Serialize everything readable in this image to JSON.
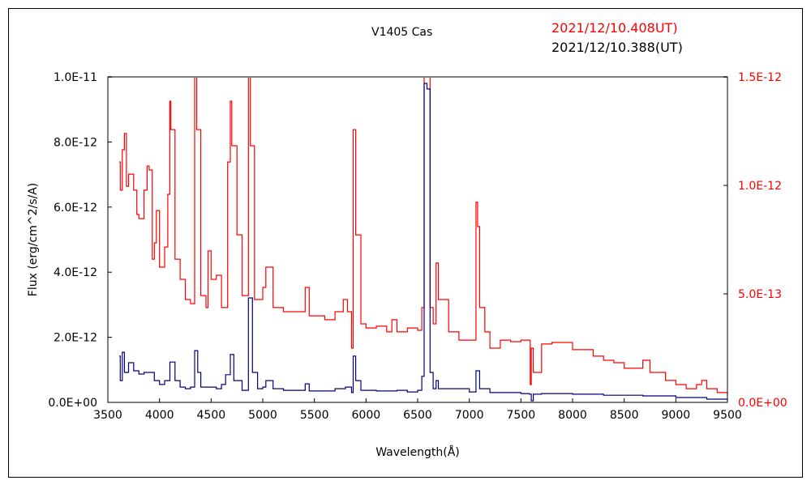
{
  "chart_data": {
    "type": "line",
    "title": "V1405 Cas",
    "xlabel": "Wavelength(Å)",
    "ylabel": "Flux (erg/cm^2/s/A)",
    "xlim": [
      3500,
      9500
    ],
    "ylim_left": [
      0,
      1e-11
    ],
    "ylim_right": [
      0,
      1.5e-12
    ],
    "x_ticks": [
      "3500",
      "4000",
      "4500",
      "5000",
      "5500",
      "6000",
      "6500",
      "7000",
      "7500",
      "8000",
      "8500",
      "9000",
      "9500"
    ],
    "x_tick_values": [
      3500,
      4000,
      4500,
      5000,
      5500,
      6000,
      6500,
      7000,
      7500,
      8000,
      8500,
      9000,
      9500
    ],
    "y_left_ticks": [
      "0.0E+00",
      "2.0E-12",
      "4.0E-12",
      "6.0E-12",
      "8.0E-12",
      "1.0E-11"
    ],
    "y_left_tick_values": [
      0,
      2e-12,
      4e-12,
      6e-12,
      8e-12,
      1e-11
    ],
    "y_right_ticks": [
      "0.0E+00",
      "5.0E-13",
      "1.0E-12",
      "1.5E-12"
    ],
    "y_right_tick_values": [
      0,
      5e-13,
      1e-12,
      1.5e-12
    ],
    "grid": false,
    "legend_placement": "top-right",
    "series": [
      {
        "name": "2021/12/10.408UT)",
        "axis": "right",
        "color": "#ff0000",
        "points": [
          [
            3610,
            1.108e-12
          ],
          [
            3620,
            9.78e-13
          ],
          [
            3640,
            1.164e-12
          ],
          [
            3660,
            1.239e-12
          ],
          [
            3680,
            9.96e-13
          ],
          [
            3700,
            1.052e-12
          ],
          [
            3750,
            9.78e-13
          ],
          [
            3780,
            8.66e-13
          ],
          [
            3800,
            8.47e-13
          ],
          [
            3850,
            9.78e-13
          ],
          [
            3880,
            1.089e-12
          ],
          [
            3900,
            1.071e-12
          ],
          [
            3930,
            6.6e-13
          ],
          [
            3950,
            7.35e-13
          ],
          [
            3970,
            8.84e-13
          ],
          [
            4000,
            6.23e-13
          ],
          [
            4050,
            7.16e-13
          ],
          [
            4080,
            9.59e-13
          ],
          [
            4100,
            1.388e-12
          ],
          [
            4110,
            1.257e-12
          ],
          [
            4150,
            6.6e-13
          ],
          [
            4200,
            5.67e-13
          ],
          [
            4250,
            4.74e-13
          ],
          [
            4300,
            4.55e-13
          ],
          [
            4340,
            1.6e-12
          ],
          [
            4360,
            1.257e-12
          ],
          [
            4400,
            4.92e-13
          ],
          [
            4450,
            4.37e-13
          ],
          [
            4470,
            6.98e-13
          ],
          [
            4500,
            5.67e-13
          ],
          [
            4550,
            5.86e-13
          ],
          [
            4600,
            4.37e-13
          ],
          [
            4660,
            1.108e-12
          ],
          [
            4686,
            1.388e-12
          ],
          [
            4700,
            1.183e-12
          ],
          [
            4750,
            7.72e-13
          ],
          [
            4800,
            4.92e-13
          ],
          [
            4861,
            2e-12
          ],
          [
            4880,
            1.183e-12
          ],
          [
            4920,
            4.74e-13
          ],
          [
            5000,
            5.3e-13
          ],
          [
            5030,
            6.23e-13
          ],
          [
            5100,
            4.37e-13
          ],
          [
            5200,
            4.18e-13
          ],
          [
            5300,
            4.18e-13
          ],
          [
            5411,
            5.3e-13
          ],
          [
            5450,
            3.99e-13
          ],
          [
            5500,
            3.99e-13
          ],
          [
            5600,
            3.81e-13
          ],
          [
            5700,
            4.18e-13
          ],
          [
            5780,
            4.74e-13
          ],
          [
            5820,
            4.18e-13
          ],
          [
            5860,
            2.5e-13
          ],
          [
            5876,
            1.257e-12
          ],
          [
            5900,
            7.72e-13
          ],
          [
            5950,
            3.62e-13
          ],
          [
            6000,
            3.43e-13
          ],
          [
            6100,
            3.51e-13
          ],
          [
            6200,
            3.25e-13
          ],
          [
            6250,
            3.81e-13
          ],
          [
            6300,
            3.25e-13
          ],
          [
            6400,
            3.43e-13
          ],
          [
            6500,
            3.32e-13
          ],
          [
            6540,
            4.37e-13
          ],
          [
            6563,
            2.5e-12
          ],
          [
            6590,
            2e-12
          ],
          [
            6620,
            4.37e-13
          ],
          [
            6650,
            3.62e-13
          ],
          [
            6678,
            6.42e-13
          ],
          [
            6700,
            4.74e-13
          ],
          [
            6800,
            3.25e-13
          ],
          [
            6900,
            2.87e-13
          ],
          [
            7000,
            2.87e-13
          ],
          [
            7065,
            9.22e-13
          ],
          [
            7080,
            8.1e-13
          ],
          [
            7100,
            4.37e-13
          ],
          [
            7150,
            3.25e-13
          ],
          [
            7200,
            2.5e-13
          ],
          [
            7300,
            2.87e-13
          ],
          [
            7400,
            2.8e-13
          ],
          [
            7500,
            2.87e-13
          ],
          [
            7560,
            2.87e-13
          ],
          [
            7590,
            8.2e-14
          ],
          [
            7600,
            2.5e-13
          ],
          [
            7620,
            1.38e-13
          ],
          [
            7700,
            2.69e-13
          ],
          [
            7800,
            2.76e-13
          ],
          [
            8000,
            2.43e-13
          ],
          [
            8200,
            2.13e-13
          ],
          [
            8300,
            1.94e-13
          ],
          [
            8400,
            1.83e-13
          ],
          [
            8500,
            1.57e-13
          ],
          [
            8600,
            1.57e-13
          ],
          [
            8680,
            1.94e-13
          ],
          [
            8750,
            1.38e-13
          ],
          [
            8900,
            1.01e-13
          ],
          [
            9000,
            8.2e-14
          ],
          [
            9100,
            6.3e-14
          ],
          [
            9200,
            8.2e-14
          ],
          [
            9250,
            1.01e-13
          ],
          [
            9300,
            6.3e-14
          ],
          [
            9400,
            4.5e-14
          ],
          [
            9500,
            2.6e-14
          ]
        ]
      },
      {
        "name": "2021/12/10.388(UT)",
        "axis": "left",
        "color": "#000080",
        "points": [
          [
            3610,
            1.42e-12
          ],
          [
            3620,
            6.7e-13
          ],
          [
            3640,
            1.54e-12
          ],
          [
            3660,
            9.2e-13
          ],
          [
            3700,
            1.22e-12
          ],
          [
            3750,
            9.7e-13
          ],
          [
            3800,
            8.7e-13
          ],
          [
            3850,
            9.2e-13
          ],
          [
            3900,
            9.2e-13
          ],
          [
            3950,
            6.7e-13
          ],
          [
            4000,
            5.5e-13
          ],
          [
            4050,
            6.7e-13
          ],
          [
            4101,
            1.24e-12
          ],
          [
            4150,
            6.7e-13
          ],
          [
            4200,
            4.7e-13
          ],
          [
            4250,
            4.2e-13
          ],
          [
            4300,
            4.7e-13
          ],
          [
            4340,
            1.59e-12
          ],
          [
            4370,
            9.2e-13
          ],
          [
            4400,
            4.7e-13
          ],
          [
            4500,
            4.7e-13
          ],
          [
            4550,
            4.2e-13
          ],
          [
            4600,
            5.5e-13
          ],
          [
            4640,
            8.5e-13
          ],
          [
            4686,
            1.47e-12
          ],
          [
            4720,
            6.7e-13
          ],
          [
            4800,
            3.7e-13
          ],
          [
            4861,
            3.21e-12
          ],
          [
            4900,
            9.2e-13
          ],
          [
            4950,
            4.2e-13
          ],
          [
            5000,
            4.7e-13
          ],
          [
            5030,
            6.7e-13
          ],
          [
            5100,
            4.2e-13
          ],
          [
            5200,
            3.7e-13
          ],
          [
            5300,
            3.7e-13
          ],
          [
            5411,
            5.7e-13
          ],
          [
            5450,
            3.5e-13
          ],
          [
            5600,
            3.5e-13
          ],
          [
            5700,
            4.2e-13
          ],
          [
            5800,
            4.7e-13
          ],
          [
            5860,
            3e-13
          ],
          [
            5876,
            1.42e-12
          ],
          [
            5900,
            6.7e-13
          ],
          [
            5950,
            3.7e-13
          ],
          [
            6100,
            3.5e-13
          ],
          [
            6300,
            3.7e-13
          ],
          [
            6400,
            3.2e-13
          ],
          [
            6500,
            3.7e-13
          ],
          [
            6540,
            8e-13
          ],
          [
            6563,
            9.8e-12
          ],
          [
            6590,
            9.63e-12
          ],
          [
            6620,
            9.2e-13
          ],
          [
            6650,
            4.2e-13
          ],
          [
            6678,
            6.7e-13
          ],
          [
            6700,
            4.2e-13
          ],
          [
            7000,
            3.2e-13
          ],
          [
            7065,
            9.7e-13
          ],
          [
            7100,
            4.2e-13
          ],
          [
            7200,
            3e-13
          ],
          [
            7500,
            2.7e-13
          ],
          [
            7580,
            2.5e-13
          ],
          [
            7600,
            5e-14
          ],
          [
            7620,
            2.5e-13
          ],
          [
            7700,
            2.7e-13
          ],
          [
            8000,
            2.5e-13
          ],
          [
            8300,
            2.2e-13
          ],
          [
            8680,
            2e-13
          ],
          [
            9000,
            1.5e-13
          ],
          [
            9300,
            1e-13
          ],
          [
            9500,
            5e-14
          ]
        ]
      }
    ]
  }
}
